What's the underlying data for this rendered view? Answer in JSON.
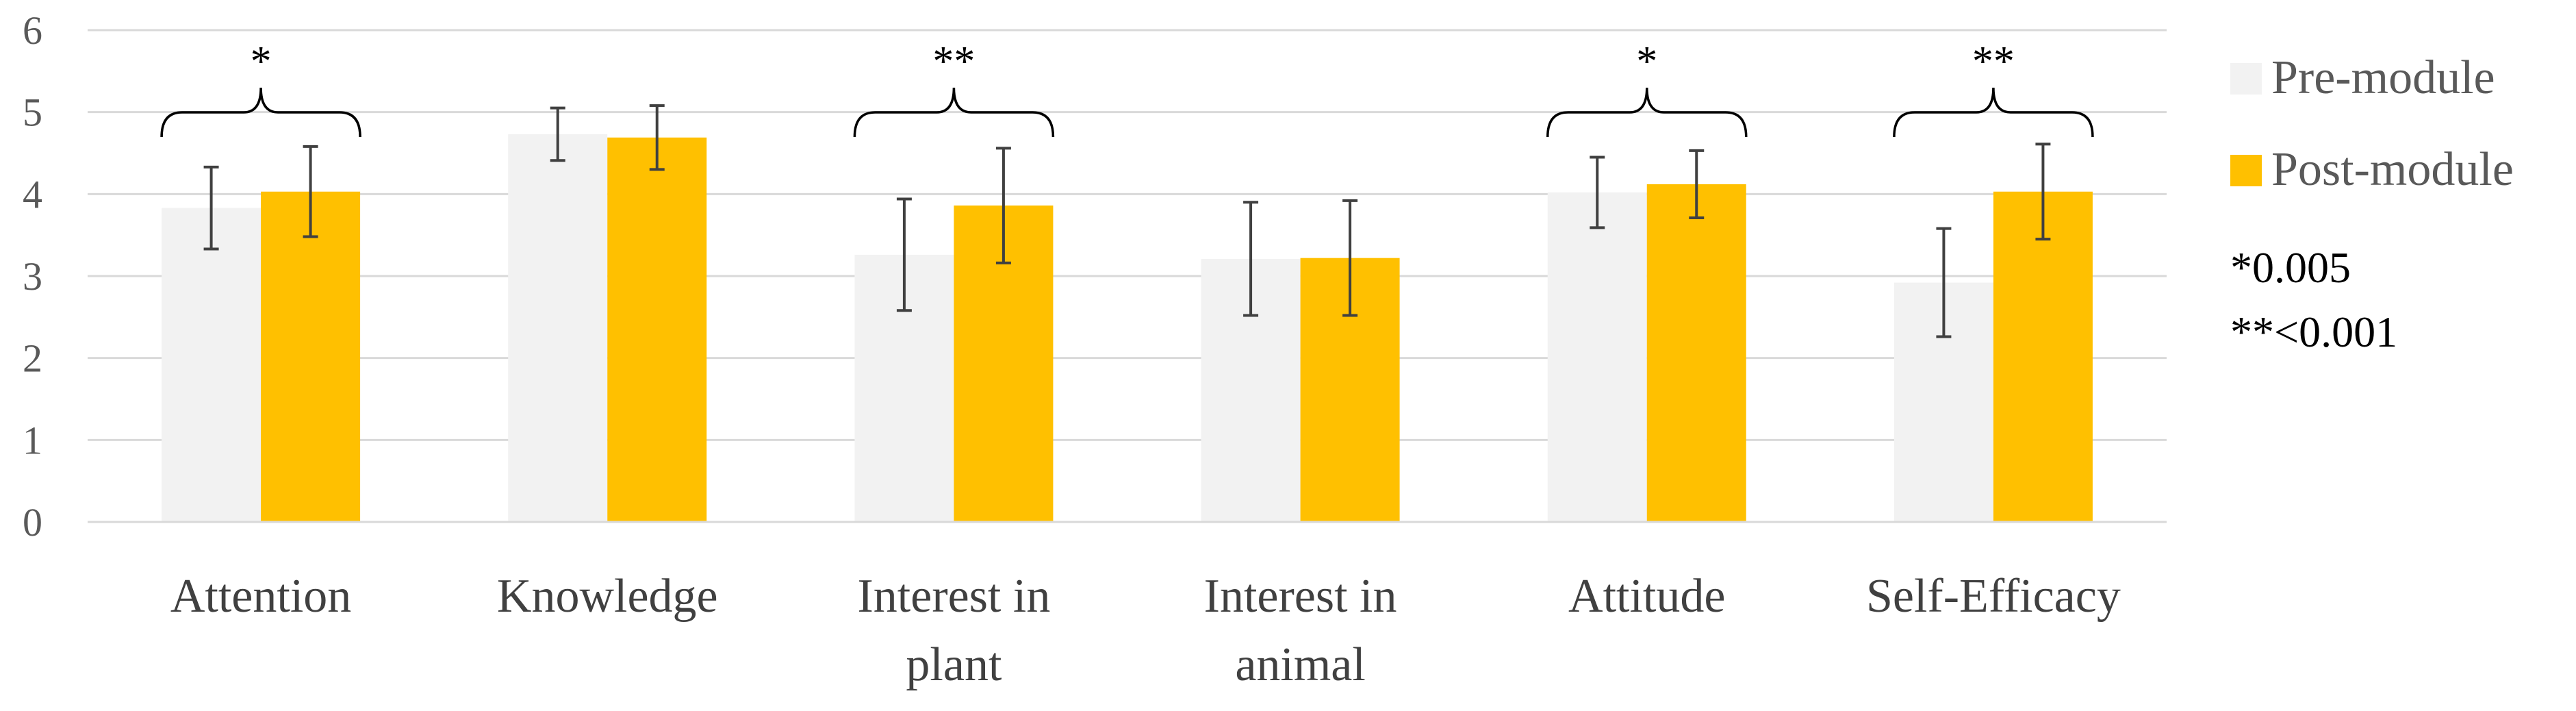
{
  "chart_data": {
    "type": "bar",
    "title": "",
    "xlabel": "",
    "ylabel": "",
    "ylim": [
      0,
      6
    ],
    "yticks": [
      0,
      1,
      2,
      3,
      4,
      5,
      6
    ],
    "grid": true,
    "legend_position": "right",
    "categories": [
      [
        "Attention"
      ],
      [
        "Knowledge"
      ],
      [
        "Interest in",
        "plant"
      ],
      [
        "Interest in",
        "animal"
      ],
      [
        "Attitude"
      ],
      [
        "Self-Efficacy"
      ]
    ],
    "series": [
      {
        "name": "Pre-module",
        "color": "#F2F2F2",
        "values": [
          3.83,
          4.73,
          3.26,
          3.21,
          4.02,
          2.92
        ],
        "error": [
          0.5,
          0.32,
          0.68,
          0.69,
          0.43,
          0.66
        ]
      },
      {
        "name": "Post-module",
        "color": "#FFC000",
        "values": [
          4.03,
          4.69,
          3.86,
          3.22,
          4.12,
          4.03
        ],
        "error": [
          0.55,
          0.39,
          0.7,
          0.7,
          0.41,
          0.58
        ]
      }
    ],
    "significance": [
      {
        "category_index": 0,
        "label": "*"
      },
      {
        "category_index": 2,
        "label": "**"
      },
      {
        "category_index": 4,
        "label": "*"
      },
      {
        "category_index": 5,
        "label": "**"
      }
    ],
    "notes": [
      "*0.005",
      "**<0.001"
    ]
  }
}
